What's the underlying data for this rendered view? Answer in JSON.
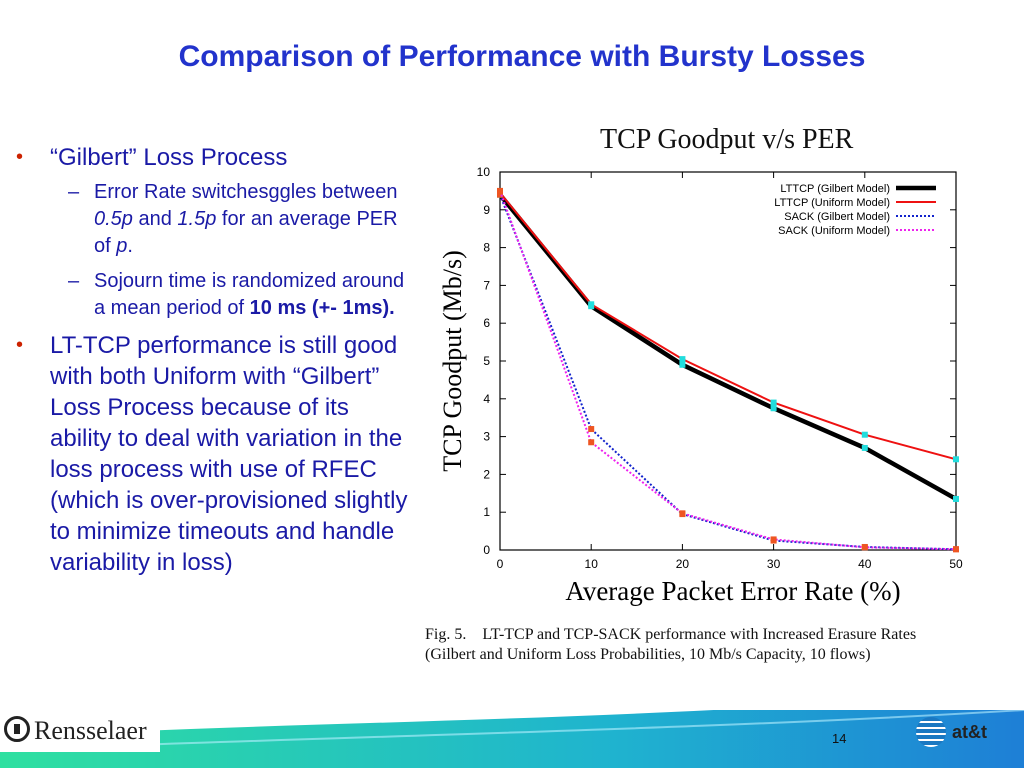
{
  "slide": {
    "title": "Comparison of Performance with Bursty Losses",
    "page_number": "14"
  },
  "bullets": {
    "item1": "“Gilbert” Loss Process",
    "sub1_a": "Error Rate switchesggles between ",
    "sub1_b": "0.5p",
    "sub1_c": " and ",
    "sub1_d": "1.5p",
    "sub1_e": " for an average PER of ",
    "sub1_f": "p",
    "sub1_g": ".",
    "sub2_a": "Sojourn time is randomized around a mean period of ",
    "sub2_b": "10 ms (+- 1ms).",
    "item2": "LT-TCP performance is still good with both Uniform with “Gilbert” Loss Process because of its ability to deal with variation in the loss process with use of RFEC (which is over-provisioned slightly to minimize timeouts and handle variability in loss)",
    "bullet_glyph": "•",
    "dash_glyph": "–"
  },
  "figure": {
    "caption_line1": "Fig. 5.    LT-TCP and TCP-SACK performance with Increased Erasure Rates",
    "caption_line2": "(Gilbert and Uniform Loss Probabilities, 10 Mb/s Capacity, 10 flows)"
  },
  "logos": {
    "left": "Rensselaer",
    "right": "at&t"
  },
  "colors": {
    "title": "#2233cc",
    "bullet_text": "#1a1aa6",
    "bullet_mark": "#cc2200",
    "footer_green": "#2dd19a",
    "footer_blue": "#1e90d6"
  },
  "chart_data": {
    "type": "line",
    "title": "TCP Goodput v/s PER",
    "xlabel": "Average Packet Error Rate (%)",
    "ylabel": "TCP Goodput (Mb/s)",
    "xlim": [
      0,
      50
    ],
    "ylim": [
      0,
      10
    ],
    "x_ticks": [
      0,
      10,
      20,
      30,
      40,
      50
    ],
    "y_ticks": [
      0,
      1,
      2,
      3,
      4,
      5,
      6,
      7,
      8,
      9,
      10
    ],
    "legend_position": "top-right",
    "grid": false,
    "x": [
      0,
      10,
      20,
      30,
      40,
      50
    ],
    "series": [
      {
        "name": "LTTCP (Gilbert Model)",
        "values": [
          9.4,
          6.45,
          4.9,
          3.75,
          2.7,
          1.35
        ],
        "color": "#000000",
        "style": "solid-thick"
      },
      {
        "name": "LTTCP (Uniform Model)",
        "values": [
          9.45,
          6.5,
          5.05,
          3.9,
          3.05,
          2.4
        ],
        "color": "#ee1111",
        "style": "solid"
      },
      {
        "name": "SACK (Gilbert Model)",
        "values": [
          9.4,
          3.2,
          0.95,
          0.25,
          0.08,
          0.02
        ],
        "color": "#1122cc",
        "style": "dotted"
      },
      {
        "name": "SACK (Uniform Model)",
        "values": [
          9.5,
          2.85,
          0.97,
          0.28,
          0.07,
          0.02
        ],
        "color": "#ee22ee",
        "style": "dotted"
      }
    ]
  }
}
